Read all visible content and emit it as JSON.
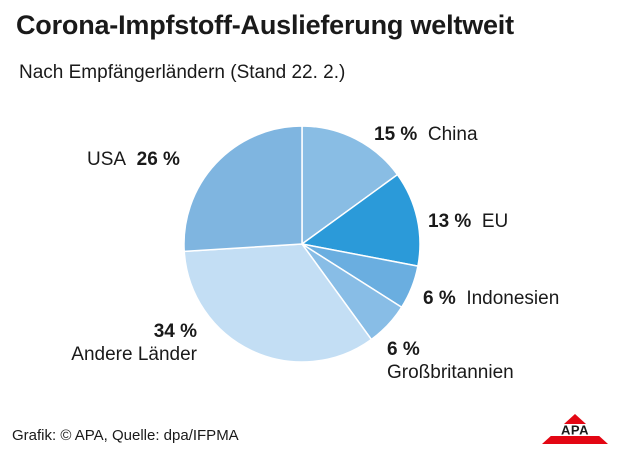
{
  "header": {
    "title": "Corona-Impfstoff-Auslieferung weltweit",
    "subtitle": "Nach Empfängerländern (Stand 22. 2.)"
  },
  "chart_data": {
    "type": "pie",
    "title": "Corona-Impfstoff-Auslieferung weltweit",
    "subtitle": "Nach Empfängerländern (Stand 22. 2.)",
    "slices": [
      {
        "label": "USA",
        "value": 26,
        "value_label": "26 %",
        "color": "#7fb5e0"
      },
      {
        "label": "China",
        "value": 15,
        "value_label": "15 %",
        "color": "#89bde4"
      },
      {
        "label": "EU",
        "value": 13,
        "value_label": "13 %",
        "color": "#2b9ad9"
      },
      {
        "label": "Indonesien",
        "value": 6,
        "value_label": "6 %",
        "color": "#6aaee0"
      },
      {
        "label": "Großbritannien",
        "value": 6,
        "value_label": "6 %",
        "color": "#88bde6"
      },
      {
        "label": "Andere Länder",
        "value": 34,
        "value_label": "34 %",
        "color": "#c3def4"
      }
    ]
  },
  "footer": {
    "source": "Grafik: © APA, Quelle: dpa/IFPMA"
  },
  "logo": {
    "text": "APA",
    "color": "#e30613"
  }
}
